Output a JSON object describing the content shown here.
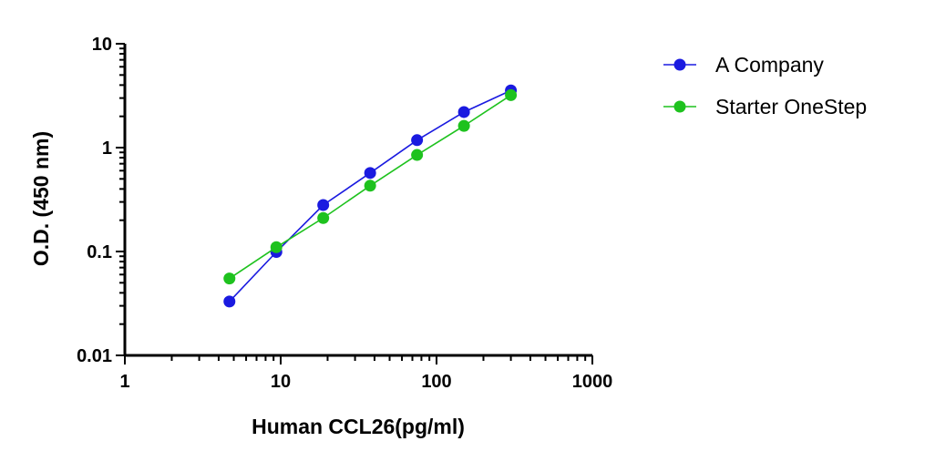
{
  "chart_data": {
    "type": "line",
    "xlabel": "Human CCL26(pg/ml)",
    "ylabel": "O.D. (450 nm)",
    "xscale": "log",
    "yscale": "log",
    "xlim": [
      1,
      1000
    ],
    "ylim": [
      0.01,
      10
    ],
    "xticks": [
      {
        "value": 1,
        "label": "1"
      },
      {
        "value": 10,
        "label": "10"
      },
      {
        "value": 100,
        "label": "100"
      },
      {
        "value": 1000,
        "label": "1000"
      }
    ],
    "yticks": [
      {
        "value": 0.01,
        "label": "0.01"
      },
      {
        "value": 0.1,
        "label": "0.1"
      },
      {
        "value": 1,
        "label": "1"
      },
      {
        "value": 10,
        "label": "10"
      }
    ],
    "legend_position": "right",
    "series": [
      {
        "name": "A Company",
        "color": "#1a1ae0",
        "x": [
          4.69,
          9.38,
          18.75,
          37.5,
          75,
          150,
          300
        ],
        "y": [
          0.033,
          0.099,
          0.28,
          0.57,
          1.18,
          2.2,
          3.55
        ]
      },
      {
        "name": "Starter OneStep",
        "color": "#1ec21e",
        "x": [
          4.69,
          9.38,
          18.75,
          37.5,
          75,
          150,
          300
        ],
        "y": [
          0.055,
          0.11,
          0.21,
          0.43,
          0.85,
          1.62,
          3.2
        ]
      }
    ]
  }
}
